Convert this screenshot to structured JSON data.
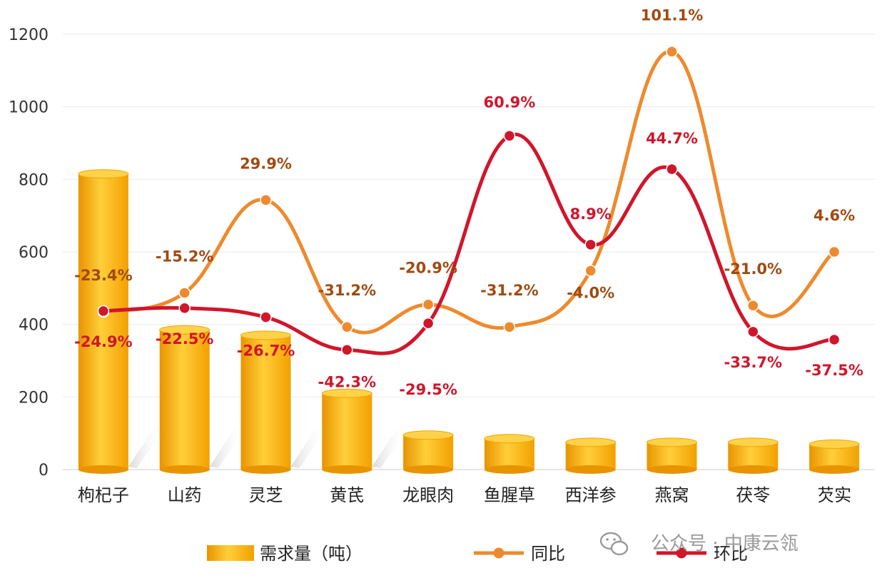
{
  "chart_data": {
    "type": "bar",
    "title": "",
    "xlabel": "",
    "ylabel": "",
    "ylim": [
      0,
      1200
    ],
    "yticks": [
      0,
      200,
      400,
      600,
      800,
      1000,
      1200
    ],
    "grid": true,
    "legend_position": "bottom",
    "categories": [
      "枸杞子",
      "山药",
      "灵芝",
      "黄芪",
      "龙眼肉",
      "鱼腥草",
      "西洋参",
      "燕窝",
      "茯苓",
      "芡实"
    ],
    "bars": {
      "name": "需求量（吨）",
      "values": [
        815,
        385,
        370,
        210,
        95,
        85,
        75,
        75,
        75,
        70
      ],
      "color": "#f5a700"
    },
    "series": [
      {
        "name": "同比",
        "type": "line",
        "color": "#ee8a2e",
        "values": [
          435,
          487,
          743,
          393,
          455,
          393,
          548,
          1152,
          452,
          600
        ],
        "labels": [
          "-23.4%",
          "-15.2%",
          "29.9%",
          "-31.2%",
          "-20.9%",
          "-31.2%",
          "-4.0%",
          "101.1%",
          "-21.0%",
          "4.6%"
        ],
        "label_color": "#a04a12"
      },
      {
        "name": "环比",
        "type": "line",
        "color": "#d0162b",
        "values": [
          437,
          445,
          420,
          330,
          403,
          920,
          620,
          828,
          380,
          358
        ],
        "labels": [
          "-24.9%",
          "-22.5%",
          "-26.7%",
          "-42.3%",
          "-29.5%",
          "60.9%",
          "8.9%",
          "44.7%",
          "-33.7%",
          "-37.5%"
        ],
        "label_color": "#d0162b"
      }
    ]
  },
  "watermark": {
    "text": "公众号 · 中康云瓴",
    "icon": "wechat-icon"
  }
}
